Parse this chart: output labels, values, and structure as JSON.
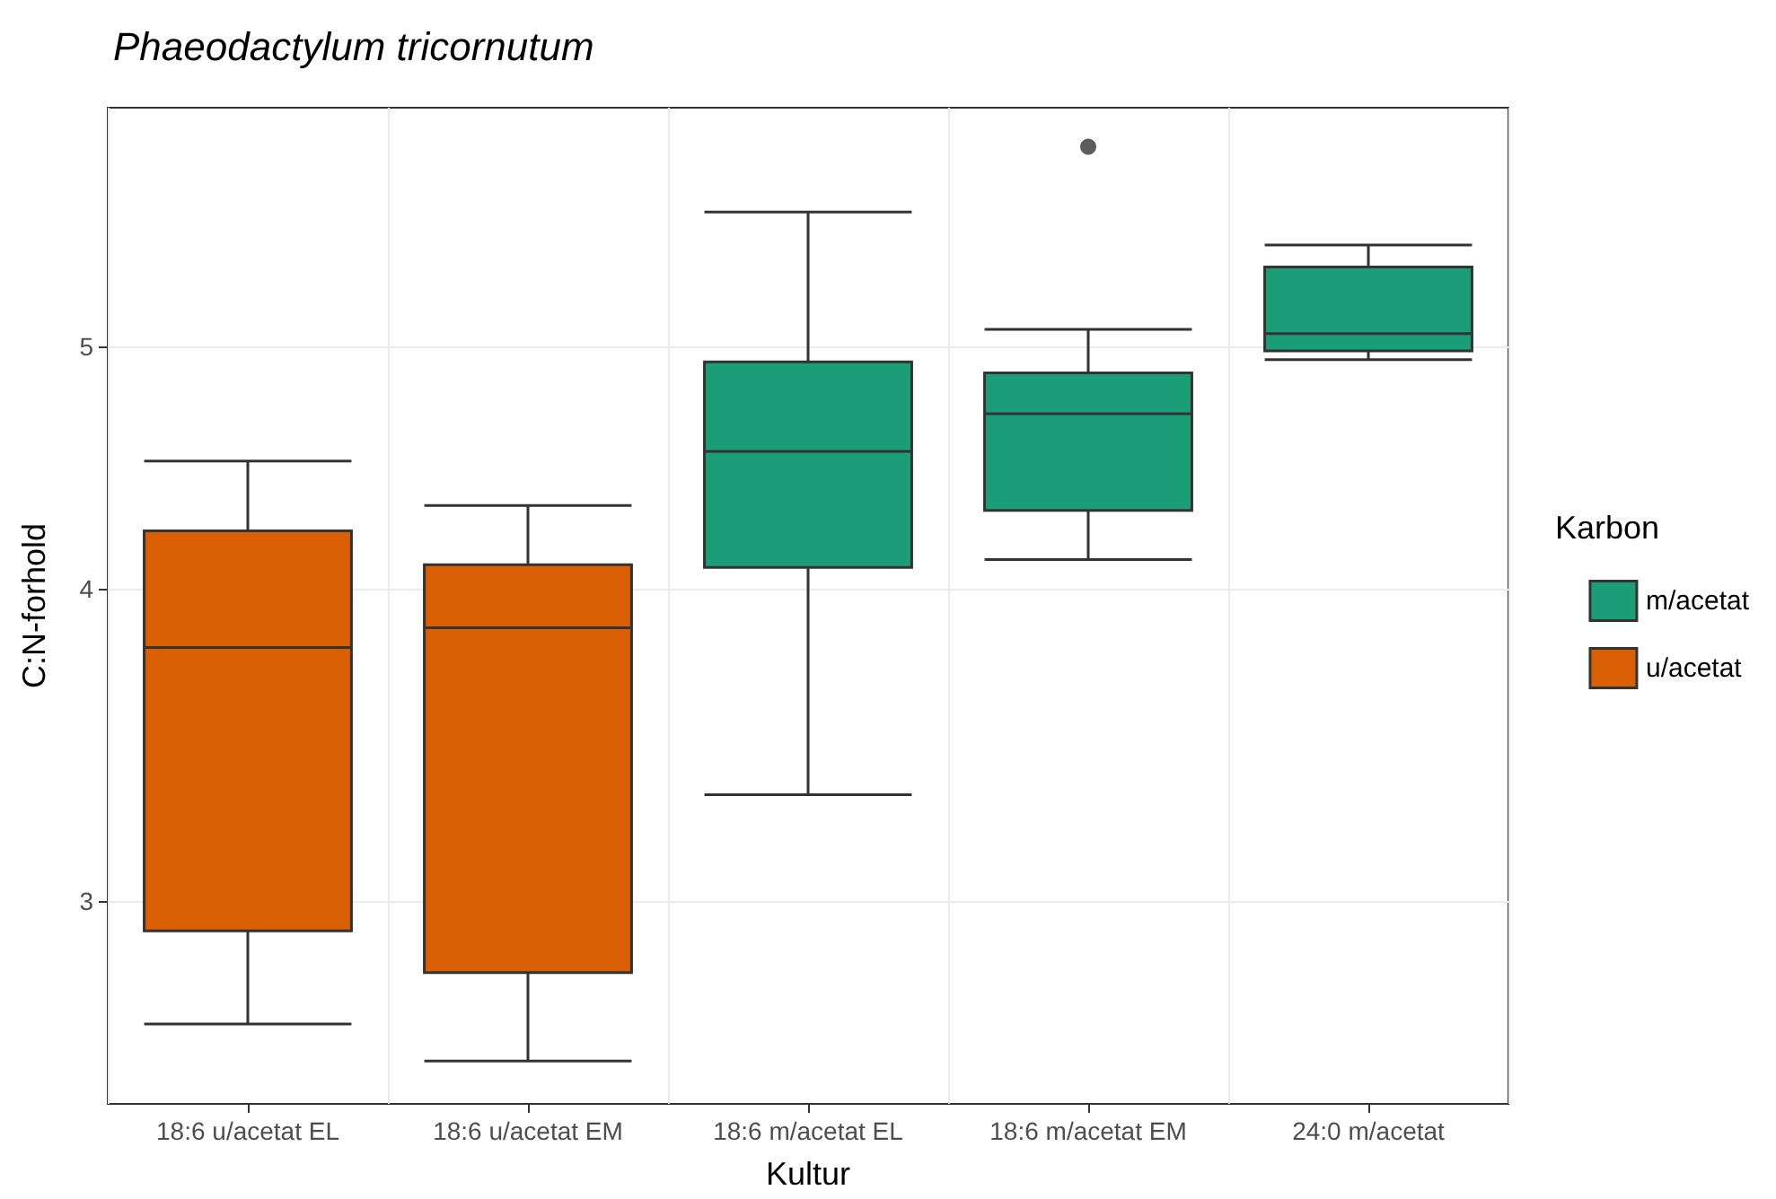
{
  "chart_data": {
    "type": "box",
    "title": "Phaeodactylum tricornutum",
    "xlabel": "Kultur",
    "ylabel": "C:N-forhold",
    "legend_title": "Karbon",
    "categories": [
      "18:6 u/acetat EL",
      "18:6 u/acetat EM",
      "18:6 m/acetat EL",
      "18:6 m/acetat EM",
      "24:0 m/acetat"
    ],
    "series": [
      {
        "name": "m/acetat",
        "color": "#1b9e77",
        "boxes": [
          null,
          null,
          {
            "low": 3.31,
            "q1": 4.08,
            "median": 4.54,
            "q3": 4.93,
            "high": 5.66
          },
          {
            "low": 4.11,
            "q1": 4.3,
            "median": 4.7,
            "q3": 4.88,
            "high": 5.08,
            "outliers": [
              6.01
            ]
          },
          {
            "low": 4.94,
            "q1": 4.98,
            "median": 5.06,
            "q3": 5.38,
            "high": 5.49
          }
        ]
      },
      {
        "name": "u/acetat",
        "color": "#d95f02",
        "boxes": [
          {
            "low": 2.68,
            "q1": 2.92,
            "median": 3.79,
            "q3": 4.22,
            "high": 4.5
          },
          {
            "low": 2.59,
            "q1": 2.81,
            "median": 3.86,
            "q3": 4.09,
            "high": 4.32
          },
          null,
          null,
          null
        ]
      }
    ],
    "log": "y",
    "ylim": [
      2.49,
      6.23
    ],
    "yticks": [
      3,
      4,
      5
    ],
    "grid": true,
    "legend": "right"
  }
}
